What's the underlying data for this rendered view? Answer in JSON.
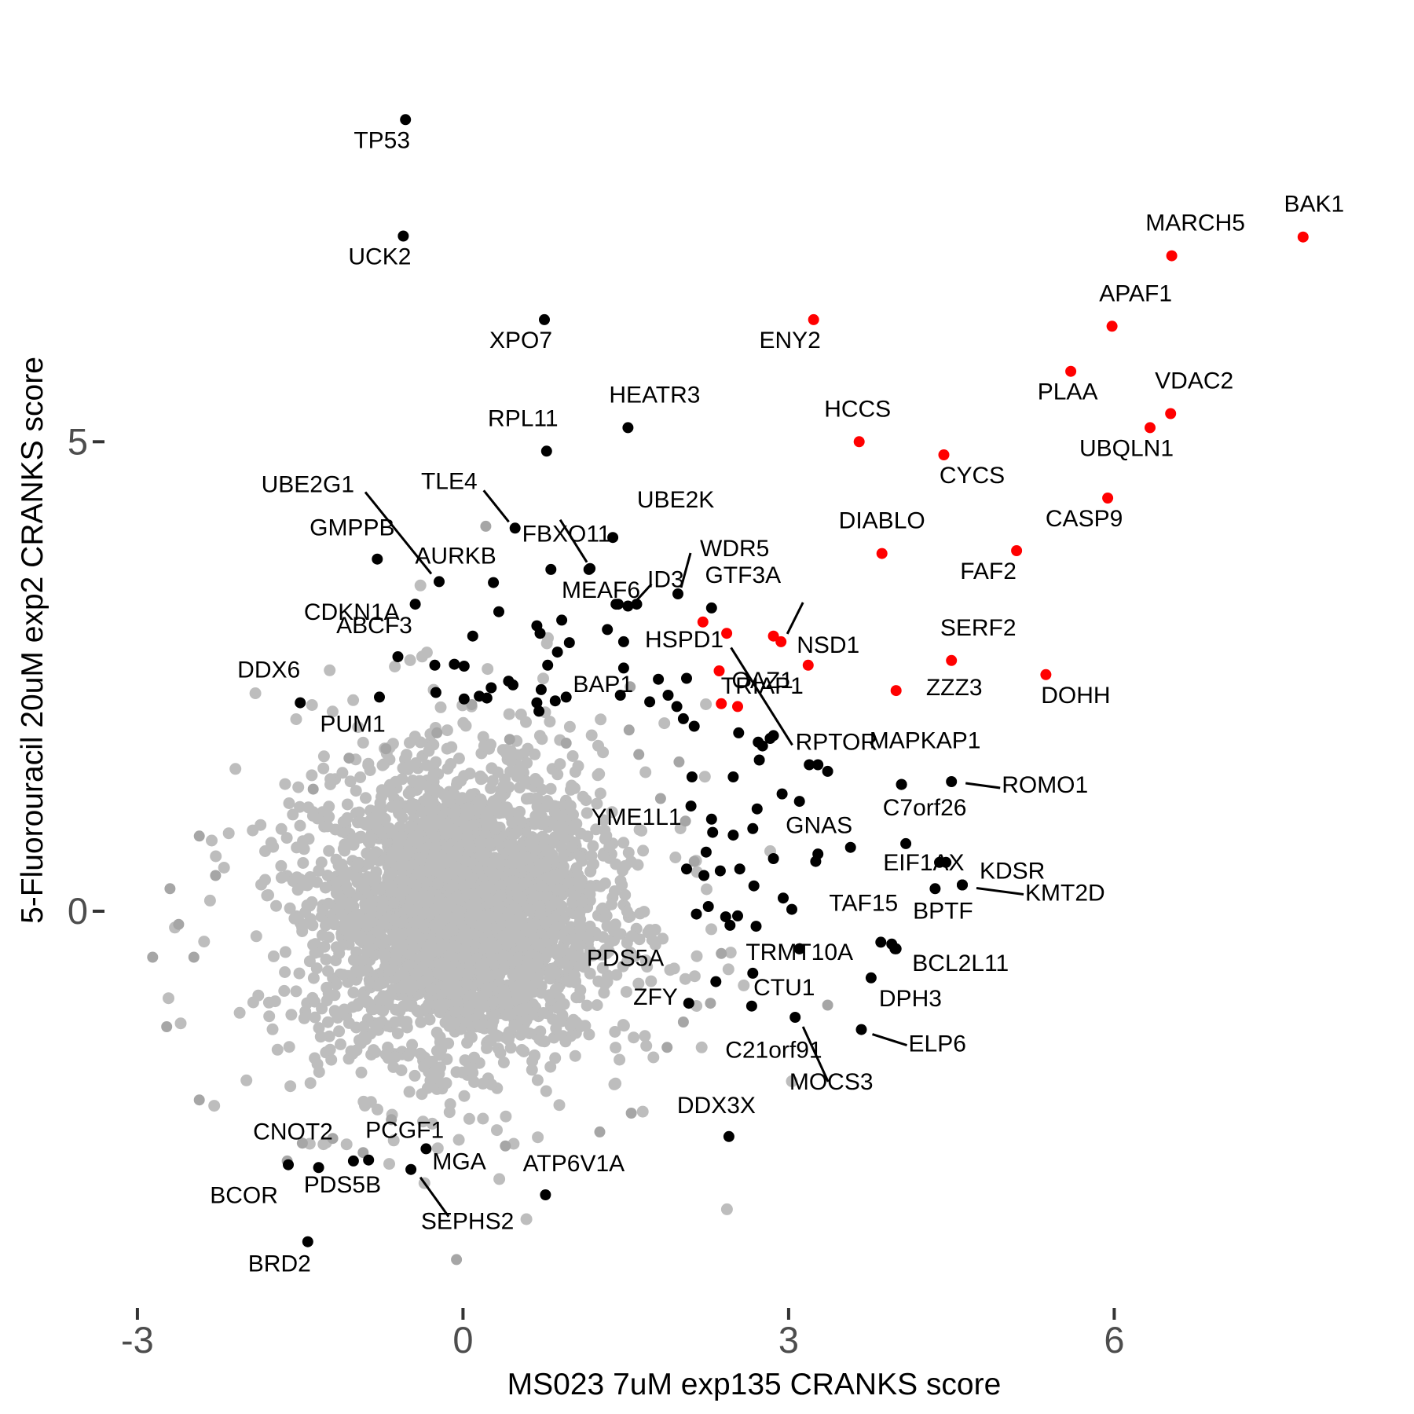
{
  "chart_data": {
    "type": "scatter",
    "title": "",
    "xlabel": "MS023 7uM exp135 CRANKS score",
    "ylabel": "5-Fluorouracil 20uM exp2 CRANKS score",
    "xlim": [
      -3.05,
      8.4
    ],
    "ylim": [
      -4.2,
      8.6
    ],
    "x_ticks": [
      {
        "value": -3,
        "label": "-3"
      },
      {
        "value": 0,
        "label": "0"
      },
      {
        "value": 3,
        "label": "3"
      },
      {
        "value": 6,
        "label": "6"
      }
    ],
    "y_ticks": [
      {
        "value": 0,
        "label": "0"
      },
      {
        "value": 5,
        "label": "5"
      }
    ],
    "grid": false,
    "legend": "none",
    "colors": {
      "background": "#bdbdbd",
      "highlight": "#ff0000",
      "labeled": "#000000"
    },
    "series": [
      {
        "color": "#ff0000",
        "points": [
          {
            "x": 7.74,
            "y": 7.18,
            "label": "BAK1"
          },
          {
            "x": 6.53,
            "y": 6.98,
            "label": "MARCH5"
          },
          {
            "x": 5.98,
            "y": 6.23,
            "label": "APAF1"
          },
          {
            "x": 5.6,
            "y": 5.75,
            "label": "PLAA"
          },
          {
            "x": 6.52,
            "y": 5.3,
            "label": "VDAC2"
          },
          {
            "x": 6.33,
            "y": 5.15,
            "label": "UBQLN1"
          },
          {
            "x": 3.23,
            "y": 6.3,
            "label": "ENY2"
          },
          {
            "x": 3.65,
            "y": 5.0,
            "label": "HCCS"
          },
          {
            "x": 4.43,
            "y": 4.86,
            "label": "CYCS"
          },
          {
            "x": 5.94,
            "y": 4.4,
            "label": "CASP9"
          },
          {
            "x": 3.86,
            "y": 3.81,
            "label": "DIABLO"
          },
          {
            "x": 5.1,
            "y": 3.84,
            "label": "FAF2"
          },
          {
            "x": 2.93,
            "y": 2.87,
            "label": "NSD1"
          },
          {
            "x": 3.18,
            "y": 2.62,
            "label": "TRIAP1"
          },
          {
            "x": 4.5,
            "y": 2.67,
            "label": "SERF2"
          },
          {
            "x": 3.99,
            "y": 2.35,
            "label": "ZZZ3"
          },
          {
            "x": 5.37,
            "y": 2.52,
            "label": "DOHH"
          },
          {
            "x": 2.43,
            "y": 2.96,
            "label": "HSPD1"
          },
          {
            "x": 2.36,
            "y": 2.56,
            "label": "OAZ1"
          },
          {
            "x": 2.21,
            "y": 3.08,
            "label": ""
          },
          {
            "x": 2.86,
            "y": 2.93,
            "label": ""
          },
          {
            "x": 2.38,
            "y": 2.21,
            "label": ""
          },
          {
            "x": 2.53,
            "y": 2.18,
            "label": ""
          }
        ]
      },
      {
        "color": "#000000",
        "points": [
          {
            "x": -0.53,
            "y": 8.43,
            "label": "TP53"
          },
          {
            "x": -0.55,
            "y": 7.19,
            "label": "UCK2"
          },
          {
            "x": 0.75,
            "y": 6.3,
            "label": "XPO7"
          },
          {
            "x": 1.52,
            "y": 5.15,
            "label": "HEATR3"
          },
          {
            "x": 0.77,
            "y": 4.9,
            "label": "RPL11"
          },
          {
            "x": -0.22,
            "y": 3.51,
            "label": "UBE2G1"
          },
          {
            "x": 0.48,
            "y": 4.08,
            "label": "TLE4"
          },
          {
            "x": 1.17,
            "y": 3.65,
            "label": "FBXO11"
          },
          {
            "x": 1.38,
            "y": 3.98,
            "label": "UBE2K"
          },
          {
            "x": -0.79,
            "y": 3.75,
            "label": "GMPPB"
          },
          {
            "x": 0.28,
            "y": 3.5,
            "label": "AURKB"
          },
          {
            "x": -0.44,
            "y": 3.27,
            "label": "CDKN1A"
          },
          {
            "x": 1.52,
            "y": 3.25,
            "label": "ID3"
          },
          {
            "x": 1.98,
            "y": 3.38,
            "label": "WDR5"
          },
          {
            "x": 2.29,
            "y": 3.23,
            "label": "GTF3A"
          },
          {
            "x": 1.43,
            "y": 3.27,
            "label": "MEAF6"
          },
          {
            "x": -0.6,
            "y": 2.71,
            "label": "ABCF3"
          },
          {
            "x": 1.45,
            "y": 2.3,
            "label": "BAP1"
          },
          {
            "x": 2.86,
            "y": 1.87,
            "label": "RPTOR"
          },
          {
            "x": -1.5,
            "y": 2.22,
            "label": "DDX6"
          },
          {
            "x": -0.77,
            "y": 2.28,
            "label": "PUM1"
          },
          {
            "x": 4.04,
            "y": 1.35,
            "label": "MAPKAP1"
          },
          {
            "x": 4.5,
            "y": 1.38,
            "label": "ROMO1"
          },
          {
            "x": 2.1,
            "y": 1.12,
            "label": "YME1L1"
          },
          {
            "x": 4.08,
            "y": 0.72,
            "label": "C7orf26"
          },
          {
            "x": 3.57,
            "y": 0.68,
            "label": "GNAS"
          },
          {
            "x": 4.45,
            "y": 0.52,
            "label": "EIF1AX"
          },
          {
            "x": 4.6,
            "y": 0.28,
            "label": "KDSR"
          },
          {
            "x": 4.35,
            "y": 0.24,
            "label": "BPTF"
          },
          {
            "x": 4.6,
            "y": 0.28,
            "label": "KMT2D"
          },
          {
            "x": 3.85,
            "y": -0.33,
            "label": "TAF15"
          },
          {
            "x": 3.1,
            "y": -0.4,
            "label": "TRMT10A"
          },
          {
            "x": 3.98,
            "y": -0.4,
            "label": "BCL2L11"
          },
          {
            "x": 2.33,
            "y": -0.75,
            "label": "PDS5A"
          },
          {
            "x": 2.67,
            "y": -0.66,
            "label": "CTU1"
          },
          {
            "x": 3.76,
            "y": -0.71,
            "label": "DPH3"
          },
          {
            "x": 2.08,
            "y": -0.98,
            "label": "ZFY"
          },
          {
            "x": 3.06,
            "y": -1.13,
            "label": "MOCS3"
          },
          {
            "x": 2.66,
            "y": -1.01,
            "label": "C21orf91"
          },
          {
            "x": 3.67,
            "y": -1.26,
            "label": "ELP6"
          },
          {
            "x": 2.45,
            "y": -2.4,
            "label": "DDX3X"
          },
          {
            "x": -1.61,
            "y": -2.7,
            "label": "CNOT2"
          },
          {
            "x": -1.01,
            "y": -2.66,
            "label": "PDS5B"
          },
          {
            "x": -0.87,
            "y": -2.65,
            "label": "PCGF1"
          },
          {
            "x": -0.34,
            "y": -2.53,
            "label": "MGA"
          },
          {
            "x": -0.48,
            "y": -2.75,
            "label": "SEPHS2"
          },
          {
            "x": 0.76,
            "y": -3.02,
            "label": "ATP6V1A"
          },
          {
            "x": -1.43,
            "y": -3.52,
            "label": "BRD2"
          },
          {
            "x": -1.33,
            "y": -2.73,
            "label": "BCOR"
          },
          {
            "x": 1.16,
            "y": 3.64,
            "label": ""
          },
          {
            "x": 1.41,
            "y": 3.27,
            "label": ""
          },
          {
            "x": 1.6,
            "y": 3.27,
            "label": ""
          },
          {
            "x": 0.81,
            "y": 3.64,
            "label": ""
          },
          {
            "x": 0.33,
            "y": 3.19,
            "label": ""
          },
          {
            "x": 0.68,
            "y": 3.04,
            "label": ""
          },
          {
            "x": 0.71,
            "y": 2.96,
            "label": ""
          },
          {
            "x": 1.33,
            "y": 3.0,
            "label": ""
          },
          {
            "x": 1.48,
            "y": 2.87,
            "label": ""
          },
          {
            "x": 0.09,
            "y": 2.93,
            "label": ""
          },
          {
            "x": 0.91,
            "y": 3.1,
            "label": ""
          },
          {
            "x": 0.98,
            "y": 2.86,
            "label": ""
          },
          {
            "x": 0.87,
            "y": 2.76,
            "label": ""
          },
          {
            "x": 0.78,
            "y": 2.62,
            "label": ""
          },
          {
            "x": -0.08,
            "y": 2.63,
            "label": ""
          },
          {
            "x": 0.01,
            "y": 2.61,
            "label": ""
          },
          {
            "x": 0.42,
            "y": 2.45,
            "label": ""
          },
          {
            "x": 0.46,
            "y": 2.41,
            "label": ""
          },
          {
            "x": -0.25,
            "y": 2.33,
            "label": ""
          },
          {
            "x": -0.26,
            "y": 2.62,
            "label": ""
          },
          {
            "x": 0.15,
            "y": 2.29,
            "label": ""
          },
          {
            "x": 0.26,
            "y": 2.38,
            "label": ""
          },
          {
            "x": 0.22,
            "y": 2.27,
            "label": ""
          },
          {
            "x": 0.01,
            "y": 2.26,
            "label": ""
          },
          {
            "x": 0.68,
            "y": 2.22,
            "label": ""
          },
          {
            "x": 0.72,
            "y": 2.36,
            "label": ""
          },
          {
            "x": 0.85,
            "y": 2.24,
            "label": ""
          },
          {
            "x": 0.95,
            "y": 2.28,
            "label": ""
          },
          {
            "x": 0.7,
            "y": 2.13,
            "label": ""
          },
          {
            "x": 1.48,
            "y": 2.59,
            "label": ""
          },
          {
            "x": 1.72,
            "y": 2.23,
            "label": ""
          },
          {
            "x": 1.8,
            "y": 2.47,
            "label": ""
          },
          {
            "x": 1.97,
            "y": 2.18,
            "label": ""
          },
          {
            "x": 1.89,
            "y": 2.3,
            "label": ""
          },
          {
            "x": 2.06,
            "y": 2.48,
            "label": ""
          },
          {
            "x": 2.03,
            "y": 2.05,
            "label": ""
          },
          {
            "x": 2.13,
            "y": 1.97,
            "label": ""
          },
          {
            "x": 2.54,
            "y": 1.9,
            "label": ""
          },
          {
            "x": 2.72,
            "y": 1.8,
            "label": ""
          },
          {
            "x": 2.76,
            "y": 1.76,
            "label": ""
          },
          {
            "x": 2.83,
            "y": 1.84,
            "label": ""
          },
          {
            "x": 2.11,
            "y": 1.43,
            "label": ""
          },
          {
            "x": 2.49,
            "y": 1.43,
            "label": ""
          },
          {
            "x": 2.73,
            "y": 1.61,
            "label": ""
          },
          {
            "x": 3.19,
            "y": 1.56,
            "label": ""
          },
          {
            "x": 3.27,
            "y": 1.56,
            "label": ""
          },
          {
            "x": 3.36,
            "y": 1.49,
            "label": ""
          },
          {
            "x": 4.04,
            "y": 1.35,
            "label": ""
          },
          {
            "x": 2.94,
            "y": 1.25,
            "label": ""
          },
          {
            "x": 3.1,
            "y": 1.17,
            "label": ""
          },
          {
            "x": 2.71,
            "y": 1.09,
            "label": ""
          },
          {
            "x": 2.29,
            "y": 0.98,
            "label": ""
          },
          {
            "x": 2.3,
            "y": 0.84,
            "label": ""
          },
          {
            "x": 2.49,
            "y": 0.81,
            "label": ""
          },
          {
            "x": 2.67,
            "y": 0.88,
            "label": ""
          },
          {
            "x": 2.86,
            "y": 0.56,
            "label": ""
          },
          {
            "x": 3.27,
            "y": 0.61,
            "label": ""
          },
          {
            "x": 3.25,
            "y": 0.53,
            "label": ""
          },
          {
            "x": 2.24,
            "y": 0.63,
            "label": ""
          },
          {
            "x": 2.06,
            "y": 0.45,
            "label": ""
          },
          {
            "x": 2.22,
            "y": 0.38,
            "label": ""
          },
          {
            "x": 2.37,
            "y": 0.43,
            "label": ""
          },
          {
            "x": 2.55,
            "y": 0.45,
            "label": ""
          },
          {
            "x": 2.68,
            "y": 0.27,
            "label": ""
          },
          {
            "x": 2.95,
            "y": 0.14,
            "label": ""
          },
          {
            "x": 3.03,
            "y": 0.02,
            "label": ""
          },
          {
            "x": 2.26,
            "y": 0.05,
            "label": ""
          },
          {
            "x": 2.15,
            "y": -0.03,
            "label": ""
          },
          {
            "x": 2.42,
            "y": -0.06,
            "label": ""
          },
          {
            "x": 2.53,
            "y": -0.05,
            "label": ""
          },
          {
            "x": 2.46,
            "y": -0.15,
            "label": ""
          },
          {
            "x": 2.7,
            "y": -0.16,
            "label": ""
          },
          {
            "x": 4.39,
            "y": 0.52,
            "label": ""
          },
          {
            "x": 3.95,
            "y": -0.35,
            "label": ""
          },
          {
            "x": 3.99,
            "y": -0.4,
            "label": ""
          },
          {
            "x": 3.1,
            "y": -0.4,
            "label": ""
          }
        ]
      },
      {
        "color": "#a6a6a6",
        "points": [
          {
            "x": 0.21,
            "y": 4.1,
            "label": ""
          },
          {
            "x": 1.54,
            "y": 2.39,
            "label": ""
          },
          {
            "x": 0.08,
            "y": 2.2,
            "label": ""
          },
          {
            "x": -0.71,
            "y": 1.73,
            "label": ""
          },
          {
            "x": -0.24,
            "y": 1.9,
            "label": ""
          },
          {
            "x": 0.43,
            "y": 1.83,
            "label": ""
          },
          {
            "x": 0.95,
            "y": 1.79,
            "label": ""
          },
          {
            "x": 1.53,
            "y": 1.93,
            "label": ""
          },
          {
            "x": 1.62,
            "y": 1.67,
            "label": ""
          },
          {
            "x": -1.05,
            "y": 1.63,
            "label": ""
          },
          {
            "x": -1.38,
            "y": 1.3,
            "label": ""
          },
          {
            "x": -2.43,
            "y": 0.8,
            "label": ""
          },
          {
            "x": -2.7,
            "y": 0.24,
            "label": ""
          },
          {
            "x": -2.28,
            "y": 0.38,
            "label": ""
          },
          {
            "x": -2.86,
            "y": -0.49,
            "label": ""
          },
          {
            "x": -2.73,
            "y": -1.23,
            "label": ""
          },
          {
            "x": -2.62,
            "y": -0.14,
            "label": ""
          },
          {
            "x": -2.48,
            "y": -0.49,
            "label": ""
          },
          {
            "x": -2.43,
            "y": -2.01,
            "label": ""
          },
          {
            "x": -1.62,
            "y": -2.66,
            "label": ""
          },
          {
            "x": -1.48,
            "y": -2.47,
            "label": ""
          },
          {
            "x": -1.2,
            "y": -2.42,
            "label": ""
          },
          {
            "x": -0.92,
            "y": -2.57,
            "label": ""
          },
          {
            "x": -0.66,
            "y": -2.22,
            "label": ""
          },
          {
            "x": -0.06,
            "y": -3.71,
            "label": ""
          },
          {
            "x": 0.39,
            "y": -2.5,
            "label": ""
          },
          {
            "x": 1.26,
            "y": -2.35,
            "label": ""
          },
          {
            "x": 1.55,
            "y": -2.15,
            "label": ""
          },
          {
            "x": 1.88,
            "y": -1.45,
            "label": ""
          },
          {
            "x": 2.03,
            "y": -1.18,
            "label": ""
          },
          {
            "x": 2.28,
            "y": -0.98,
            "label": ""
          },
          {
            "x": 3.36,
            "y": -1.0,
            "label": ""
          },
          {
            "x": 2.38,
            "y": -0.45,
            "label": ""
          },
          {
            "x": 2.13,
            "y": 0.53,
            "label": ""
          },
          {
            "x": 1.99,
            "y": 1.59,
            "label": ""
          },
          {
            "x": 1.82,
            "y": 1.2,
            "label": ""
          },
          {
            "x": 2.05,
            "y": 0.96,
            "label": ""
          }
        ]
      }
    ]
  }
}
